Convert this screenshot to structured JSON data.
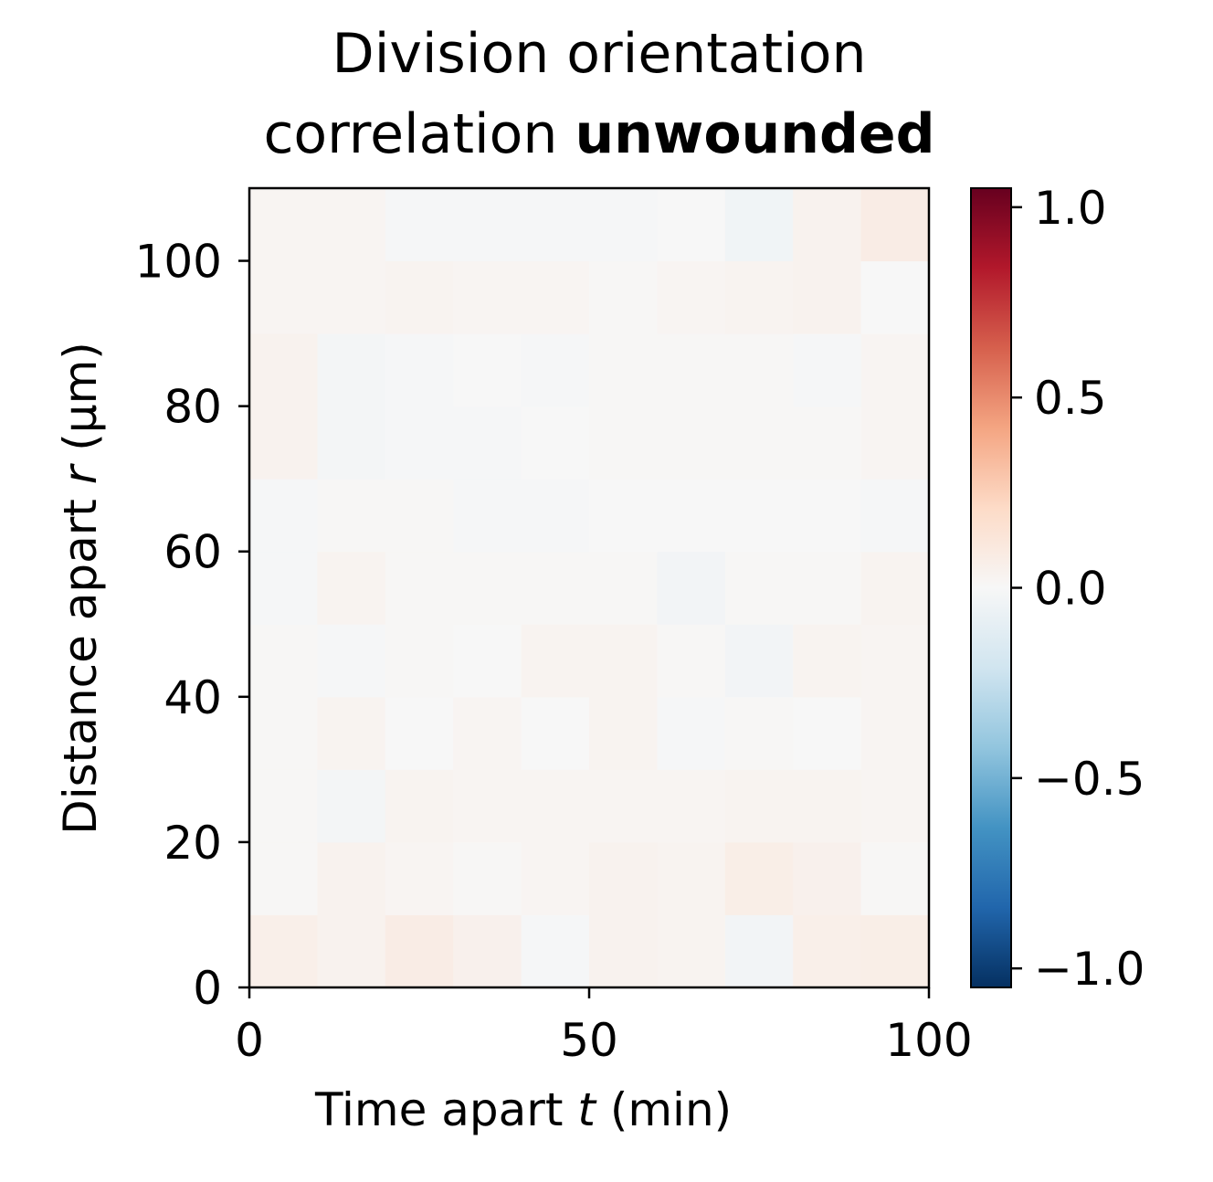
{
  "chart_data": {
    "type": "heatmap",
    "title_line1": "Division orientation",
    "title_line2_prefix": "correlation ",
    "title_line2_bold": "unwounded",
    "xlabel_prefix": "Time apart ",
    "xlabel_var": "t",
    "xlabel_suffix": " (min)",
    "ylabel_prefix": "Distance apart ",
    "ylabel_var": "r",
    "ylabel_suffix": " (μm)",
    "xlim": [
      0,
      100
    ],
    "ylim": [
      0,
      110
    ],
    "x_edges": [
      0,
      10,
      20,
      30,
      40,
      50,
      60,
      70,
      80,
      90,
      100
    ],
    "y_edges": [
      0,
      10,
      20,
      30,
      40,
      50,
      60,
      70,
      80,
      90,
      100,
      110
    ],
    "x_ticks": [
      0,
      50,
      100
    ],
    "x_tick_labels": [
      "0",
      "50",
      "100"
    ],
    "y_ticks": [
      0,
      20,
      40,
      60,
      80,
      100
    ],
    "y_tick_labels": [
      "0",
      "20",
      "40",
      "60",
      "80",
      "100"
    ],
    "colorbar": {
      "colormap": "RdBu_r",
      "vmin": -1.05,
      "vmax": 1.05,
      "ticks": [
        -1.0,
        -0.5,
        0.0,
        0.5,
        1.0
      ],
      "tick_labels": [
        "−1.0",
        "−0.5",
        "0.0",
        "0.5",
        "1.0"
      ]
    },
    "values_rows_bottom_to_top": [
      [
        0.06,
        0.04,
        0.08,
        0.05,
        -0.01,
        0.04,
        0.03,
        -0.03,
        0.06,
        0.07
      ],
      [
        0.01,
        0.04,
        0.02,
        0.01,
        0.02,
        0.04,
        0.03,
        0.07,
        0.05,
        0.01
      ],
      [
        0.01,
        -0.02,
        0.03,
        0.02,
        0.02,
        0.02,
        0.02,
        0.03,
        0.03,
        0.02
      ],
      [
        0.01,
        0.03,
        0.0,
        0.02,
        0.0,
        0.03,
        -0.01,
        0.01,
        0.0,
        0.02
      ],
      [
        0.01,
        -0.01,
        0.01,
        0.0,
        0.03,
        0.03,
        0.01,
        -0.03,
        0.03,
        0.02
      ],
      [
        -0.01,
        0.03,
        0.01,
        0.01,
        0.01,
        0.01,
        -0.03,
        0.01,
        0.01,
        0.03
      ],
      [
        -0.01,
        0.01,
        0.01,
        -0.01,
        -0.01,
        0.0,
        0.0,
        0.0,
        0.0,
        -0.01
      ],
      [
        0.04,
        -0.02,
        -0.01,
        -0.01,
        0.0,
        0.01,
        0.01,
        0.01,
        0.01,
        0.02
      ],
      [
        0.04,
        -0.02,
        -0.01,
        0.0,
        -0.01,
        0.01,
        0.01,
        0.01,
        -0.01,
        0.02
      ],
      [
        0.02,
        0.02,
        0.03,
        0.02,
        0.02,
        0.01,
        0.02,
        0.03,
        0.04,
        0.0
      ],
      [
        0.02,
        0.02,
        -0.01,
        -0.01,
        -0.01,
        -0.01,
        0.0,
        -0.04,
        0.04,
        0.08
      ]
    ]
  }
}
